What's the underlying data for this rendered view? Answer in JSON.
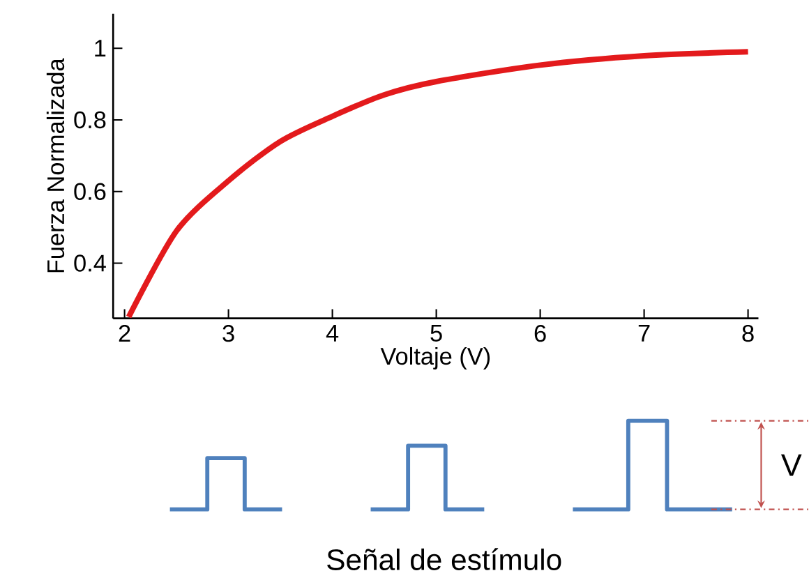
{
  "chart_data": {
    "type": "line",
    "xlabel": "Voltaje (V)",
    "ylabel": "Fuerza Normalizada",
    "x": [
      2.04,
      2.5,
      3,
      3.5,
      4,
      4.5,
      5,
      6,
      7,
      8
    ],
    "series": [
      {
        "color": "#e31a1c",
        "values": [
          0.25,
          0.49,
          0.63,
          0.74,
          0.81,
          0.87,
          0.907,
          0.953,
          0.979,
          0.99
        ]
      }
    ],
    "xlim": [
      1.89,
      8.1
    ],
    "ylim": [
      0.246,
      1.096
    ],
    "xticks": [
      2,
      3,
      4,
      5,
      6,
      7,
      8
    ],
    "yticks": [
      0.4,
      0.6,
      0.8,
      1
    ],
    "grid": false,
    "marker": "none",
    "line_style": "solid",
    "annotations": [
      "V",
      "Señal de estímulo"
    ]
  }
}
